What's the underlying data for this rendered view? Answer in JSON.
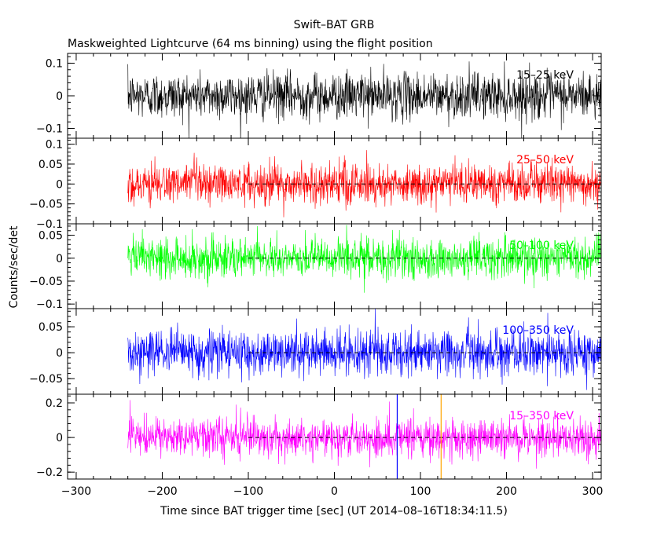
{
  "chart_data": {
    "type": "line",
    "title": "Swift–BAT GRB",
    "subtitle": "Maskweighted Lightcurve (64 ms binning) using the flight position",
    "xlabel": "Time since BAT trigger time [sec] (UT 2014–08–16T18:34:11.5)",
    "ylabel": "Counts/sec/det",
    "xlim": [
      -310,
      310
    ],
    "xticks": [
      -300,
      -200,
      -100,
      0,
      100,
      200,
      300
    ],
    "xtick_labels": [
      "−300",
      "−200",
      "−100",
      "0",
      "100",
      "200",
      "300"
    ],
    "data_range": [
      -240,
      310
    ],
    "markers": [
      {
        "x": 73,
        "color": "#0000ff",
        "panel": 4
      },
      {
        "x": 124,
        "color": "#ffa500",
        "panel": 4
      }
    ],
    "zero_line_start": -100,
    "panels": [
      {
        "name": "15–25 keV",
        "color": "#000000",
        "ylim": [
          -0.13,
          0.13
        ],
        "yticks": [
          -0.1,
          0,
          0.1
        ],
        "ytick_labels": [
          "−0.1",
          "0",
          "0.1"
        ],
        "noise_sigma": 0.035,
        "zero_line": false
      },
      {
        "name": "25–50 keV",
        "color": "#ff0000",
        "ylim": [
          -0.1,
          0.115
        ],
        "yticks": [
          -0.1,
          -0.05,
          0,
          0.05,
          0.1
        ],
        "ytick_labels": [
          "−0.1",
          "−0.05",
          "0",
          "0.05",
          "0.1"
        ],
        "noise_sigma": 0.026,
        "zero_line": true
      },
      {
        "name": "50–100 keV",
        "color": "#00ff00",
        "ylim": [
          -0.11,
          0.075
        ],
        "yticks": [
          -0.1,
          -0.05,
          0,
          0.05
        ],
        "ytick_labels": [
          "−0.1",
          "−0.05",
          "0",
          "0.05"
        ],
        "noise_sigma": 0.022,
        "zero_line": true
      },
      {
        "name": "100–350 keV",
        "color": "#0000ff",
        "ylim": [
          -0.08,
          0.085
        ],
        "yticks": [
          -0.05,
          0,
          0.05
        ],
        "ytick_labels": [
          "−0.05",
          "0",
          "0.05"
        ],
        "noise_sigma": 0.022,
        "zero_line": true
      },
      {
        "name": "15–350 keV",
        "color": "#ff00ff",
        "ylim": [
          -0.24,
          0.25
        ],
        "yticks": [
          -0.2,
          0,
          0.2
        ],
        "ytick_labels": [
          "−0.2",
          "0",
          "0.2"
        ],
        "noise_sigma": 0.055,
        "zero_line": true
      }
    ]
  }
}
